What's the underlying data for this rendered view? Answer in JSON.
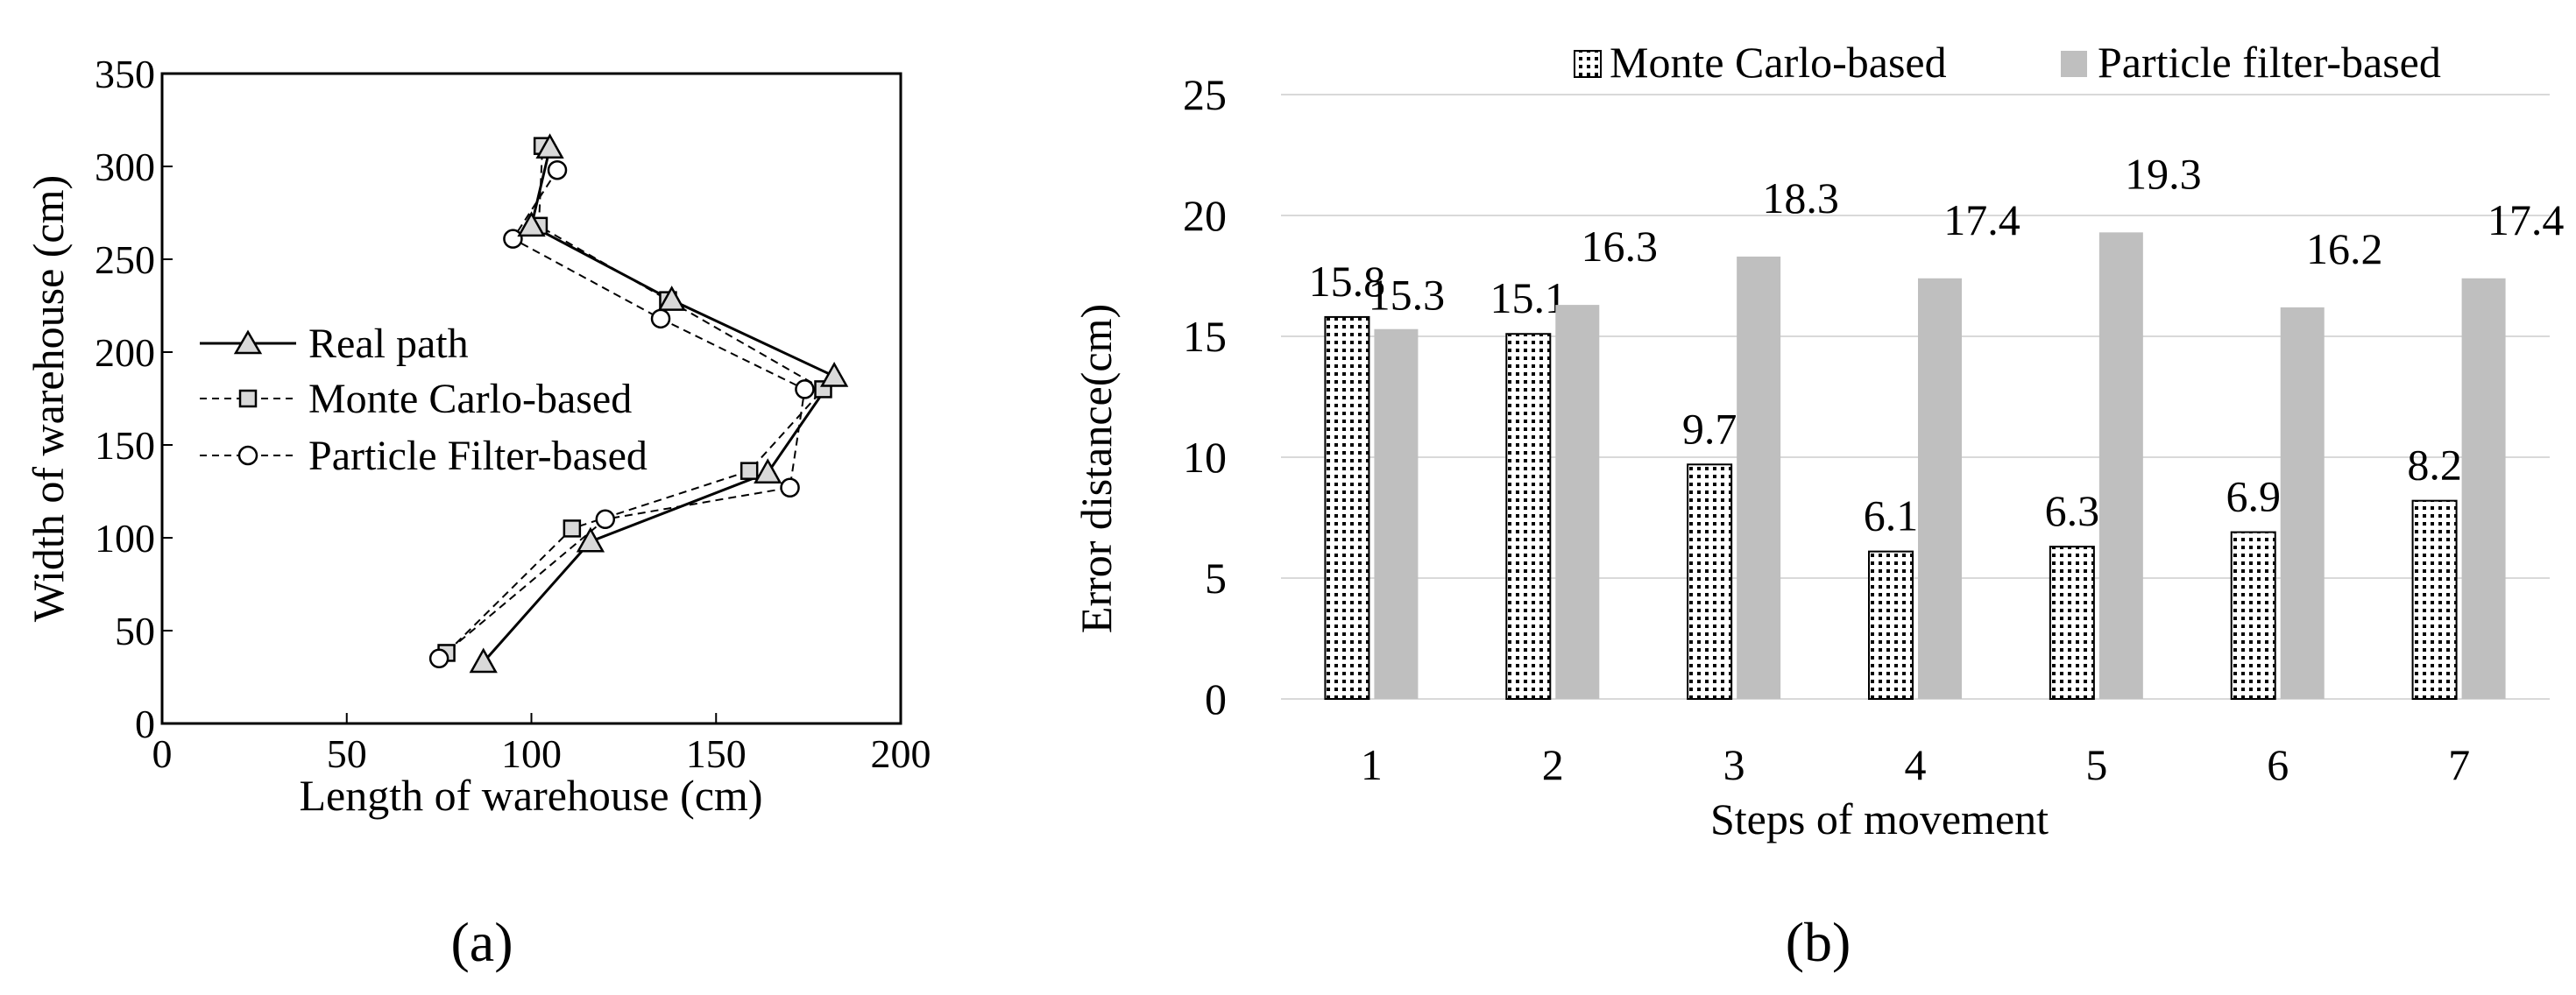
{
  "chart_data": [
    {
      "id": "a",
      "type": "line",
      "panel_label": "(a)",
      "title": "",
      "xlabel": "Length of warehouse (cm)",
      "ylabel": "Width of warehouse (cm)",
      "xlim": [
        0,
        200
      ],
      "ylim": [
        0,
        350
      ],
      "x_ticks": [
        "0",
        "50",
        "100",
        "150",
        "200"
      ],
      "y_ticks": [
        "0",
        "50",
        "100",
        "150",
        "200",
        "250",
        "300",
        "350"
      ],
      "grid": false,
      "legend_position": "center-left",
      "series": [
        {
          "name": "Real path",
          "marker": "triangle",
          "line": "solid",
          "x": [
            87,
            116,
            164,
            182,
            138,
            100,
            105
          ],
          "y": [
            33,
            98,
            135,
            187,
            228,
            268,
            310
          ]
        },
        {
          "name": "Monte Carlo-based",
          "marker": "square",
          "line": "dashed",
          "x": [
            77,
            111,
            159,
            179,
            137,
            102,
            103
          ],
          "y": [
            38,
            105,
            136,
            180,
            228,
            268,
            311
          ]
        },
        {
          "name": "Particle Filter-based",
          "marker": "circle",
          "line": "dashed",
          "x": [
            75,
            120,
            170,
            174,
            135,
            95,
            107
          ],
          "y": [
            35,
            110,
            127,
            180,
            218,
            261,
            298
          ]
        }
      ]
    },
    {
      "id": "b",
      "type": "bar",
      "panel_label": "(b)",
      "title": "",
      "xlabel": "Steps of movement",
      "ylabel": "Error distance(cm)",
      "ylim": [
        0,
        25
      ],
      "y_ticks": [
        "0",
        "5",
        "10",
        "15",
        "20",
        "25"
      ],
      "grid": true,
      "legend_position": "top",
      "categories": [
        "1",
        "2",
        "3",
        "4",
        "5",
        "6",
        "7"
      ],
      "series": [
        {
          "name": "Monte Carlo-based",
          "pattern": "dotted",
          "values": [
            15.8,
            15.1,
            9.7,
            6.1,
            6.3,
            6.9,
            8.2
          ],
          "labels": [
            "15.8",
            "15.1",
            "9.7",
            "6.1",
            "6.3",
            "6.9",
            "8.2"
          ]
        },
        {
          "name": "Particle filter-based",
          "pattern": "solid",
          "color": "#bfbfbf",
          "values": [
            15.3,
            16.3,
            18.3,
            17.4,
            19.3,
            16.2,
            17.4
          ],
          "labels": [
            "15.3",
            "16.3",
            "18.3",
            "17.4",
            "19.3",
            "16.2",
            "17.4"
          ]
        }
      ]
    }
  ]
}
